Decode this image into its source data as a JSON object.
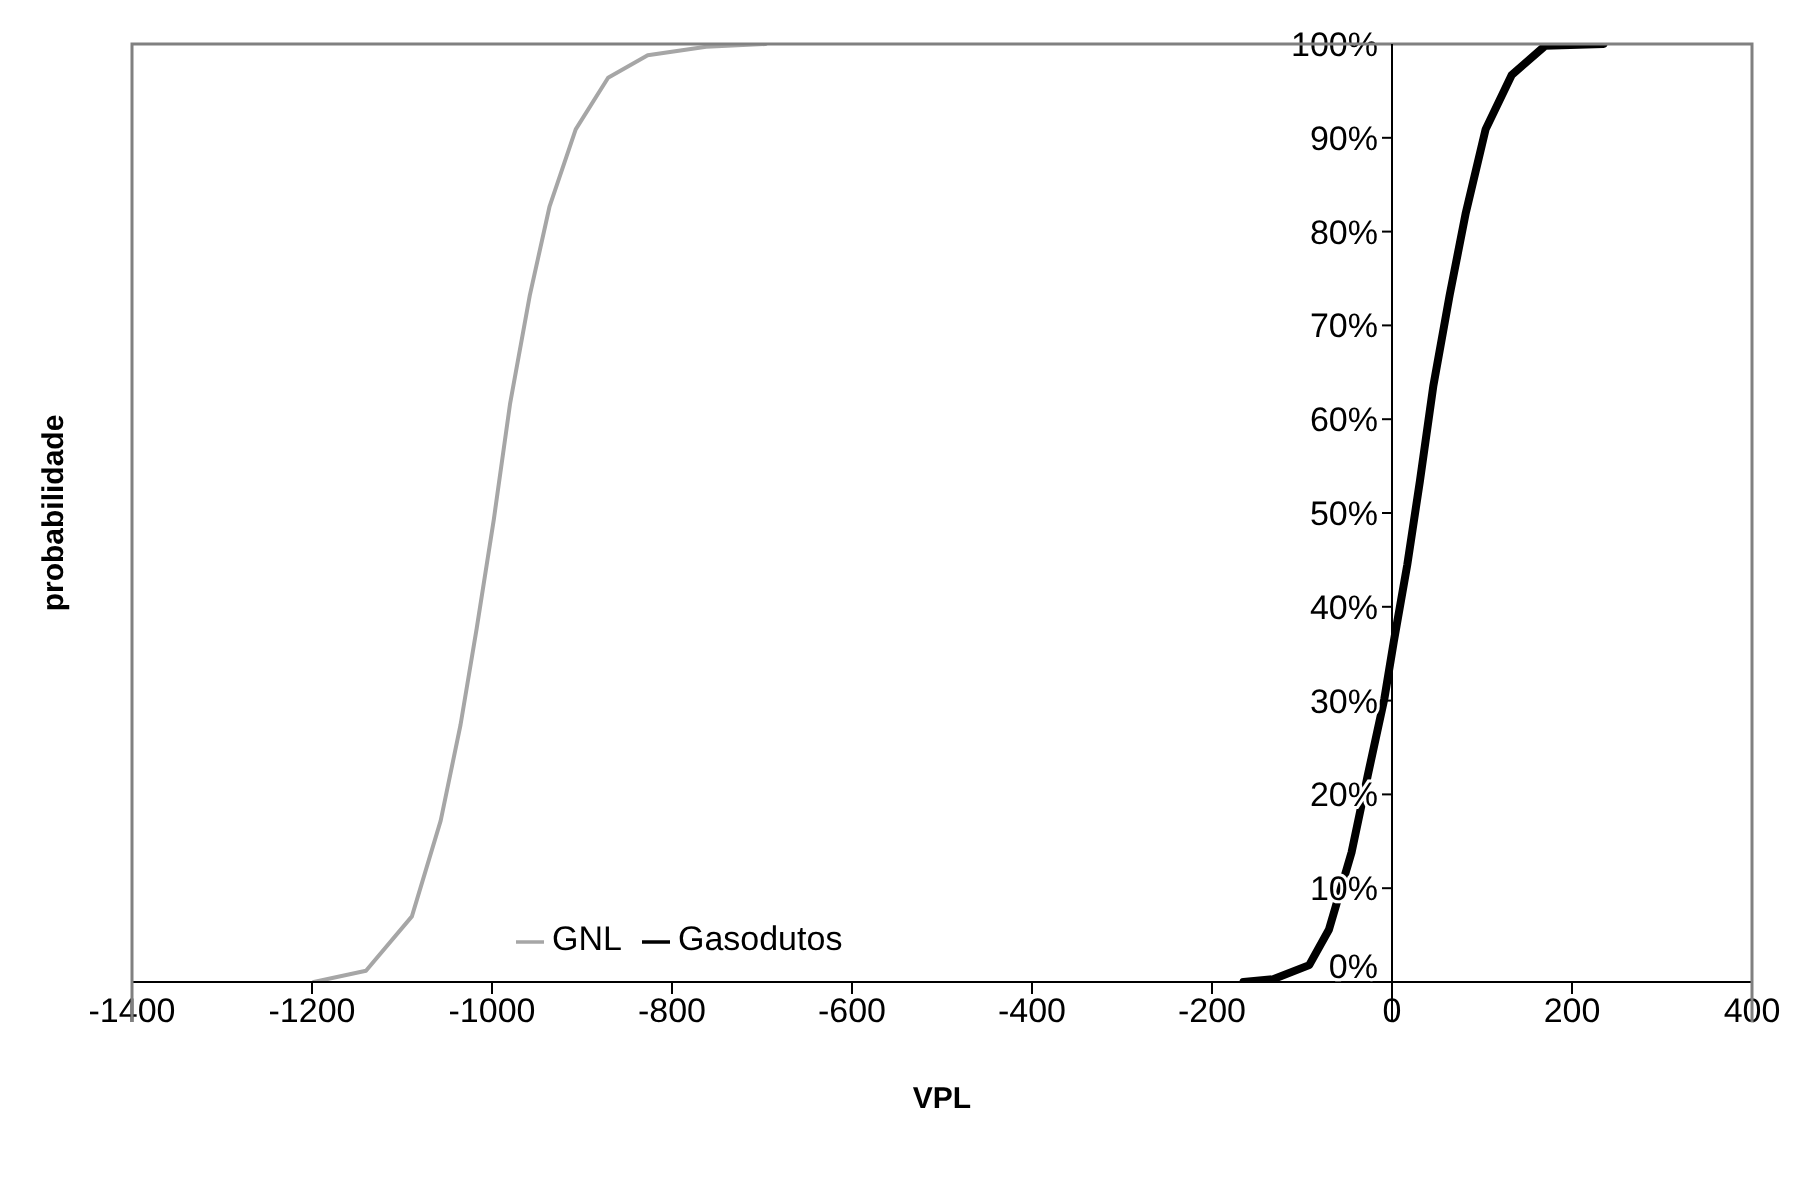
{
  "chart_data": {
    "type": "line",
    "xlabel": "VPL",
    "ylabel": "probabilidade",
    "xlim": [
      -1400,
      400
    ],
    "xticks": [
      -1400,
      -1200,
      -1000,
      -800,
      -600,
      -400,
      -200,
      0,
      200,
      400
    ],
    "ylim": [
      0,
      100
    ],
    "yticks": [
      {
        "value": 0,
        "label": "0%"
      },
      {
        "value": 10,
        "label": "10%"
      },
      {
        "value": 20,
        "label": "20%"
      },
      {
        "value": 30,
        "label": "30%"
      },
      {
        "value": 40,
        "label": "40%"
      },
      {
        "value": 50,
        "label": "50%"
      },
      {
        "value": 60,
        "label": "60%"
      },
      {
        "value": 70,
        "label": "70%"
      },
      {
        "value": 80,
        "label": "80%"
      },
      {
        "value": 90,
        "label": "90%"
      },
      {
        "value": 100,
        "label": "100%"
      }
    ],
    "grid": false,
    "legend": "bottom",
    "marker": "none",
    "line_style": "solid",
    "series": [
      {
        "name": "GNL",
        "color": "#a6a6a6",
        "x": [
          -1198,
          -1140,
          -1089,
          -1057,
          -1035,
          -1017,
          -998,
          -980,
          -958,
          -936,
          -907,
          -871,
          -827,
          -762,
          -696
        ],
        "values": [
          0,
          1.2,
          7,
          17.2,
          27.4,
          37.7,
          49.3,
          61.6,
          73.2,
          82.7,
          90.9,
          96.4,
          98.8,
          99.7,
          100
        ]
      },
      {
        "name": "Gasodutos",
        "color": "#000000",
        "x": [
          -165,
          -132,
          -92,
          -70,
          -45,
          -27,
          -8.5,
          2,
          17,
          31,
          46,
          64,
          82,
          104,
          133,
          170,
          235
        ],
        "values": [
          0,
          0.3,
          1.8,
          5.6,
          13.8,
          22,
          30.2,
          36.3,
          44.5,
          53.4,
          63.6,
          73.2,
          82,
          90.9,
          96.7,
          99.8,
          100
        ]
      }
    ]
  }
}
